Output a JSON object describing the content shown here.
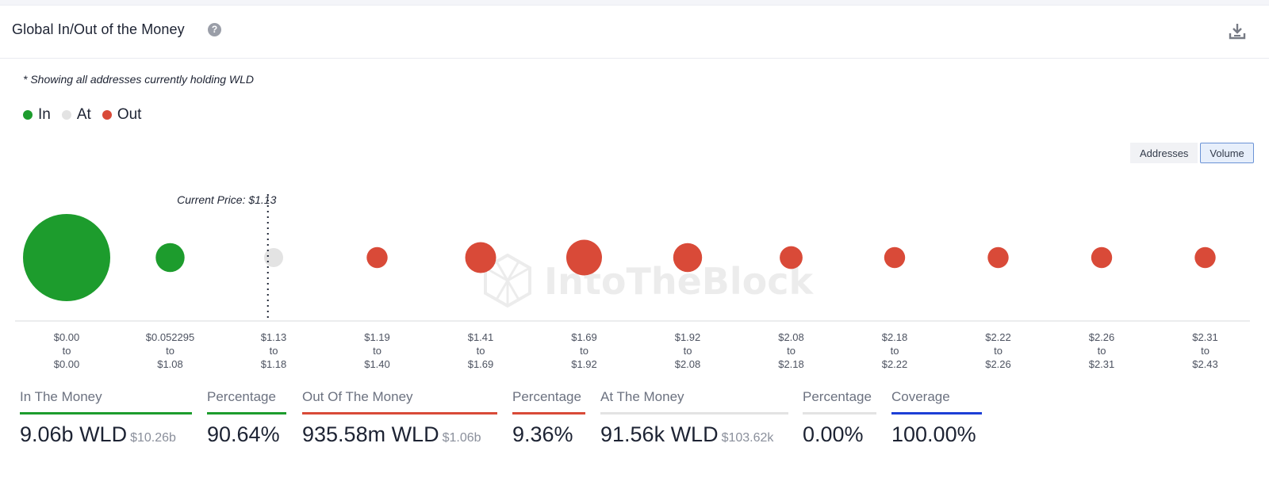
{
  "header": {
    "title": "Global In/Out of the Money",
    "help_glyph": "?",
    "help_icon": "question-circle-icon",
    "download_icon": "download-icon"
  },
  "note": "* Showing all addresses currently holding WLD",
  "legend": [
    {
      "label": "In",
      "color": "#1d9c2d"
    },
    {
      "label": "At",
      "color": "#e3e3e3"
    },
    {
      "label": "Out",
      "color": "#d94a38"
    }
  ],
  "toggle": {
    "addresses_label": "Addresses",
    "volume_label": "Volume",
    "selected": "Volume"
  },
  "watermark": "IntoTheBlock",
  "chart_data": {
    "type": "scatter",
    "subtype": "bubble",
    "annotation": "Current Price: $1.13",
    "categories": [
      {
        "lower": "$0.00",
        "upper": "$0.00"
      },
      {
        "lower": "$0.052295",
        "upper": "$1.08"
      },
      {
        "lower": "$1.13",
        "upper": "$1.18"
      },
      {
        "lower": "$1.19",
        "upper": "$1.40"
      },
      {
        "lower": "$1.41",
        "upper": "$1.69"
      },
      {
        "lower": "$1.69",
        "upper": "$1.92"
      },
      {
        "lower": "$1.92",
        "upper": "$2.08"
      },
      {
        "lower": "$2.08",
        "upper": "$2.18"
      },
      {
        "lower": "$2.18",
        "upper": "$2.22"
      },
      {
        "lower": "$2.22",
        "upper": "$2.26"
      },
      {
        "lower": "$2.26",
        "upper": "$2.31"
      },
      {
        "lower": "$2.31",
        "upper": "$2.43"
      }
    ],
    "range_connector": "to",
    "status": [
      "in",
      "in",
      "at",
      "out",
      "out",
      "out",
      "out",
      "out",
      "out",
      "out",
      "out",
      "out"
    ],
    "relative_volume": [
      1.0,
      0.109,
      0.048,
      0.058,
      0.126,
      0.168,
      0.109,
      0.069,
      0.058,
      0.058,
      0.058,
      0.058
    ],
    "status_colors": {
      "in": "#1d9c2d",
      "at": "#e3e3e3",
      "out": "#d94a38"
    },
    "current_price_marker_after_index": 1,
    "grid": false
  },
  "stats": [
    {
      "label": "In The Money",
      "main": "9.06b WLD",
      "sub": "$10.26b",
      "color": "#1d9c2d"
    },
    {
      "label": "Percentage",
      "main": "90.64%",
      "sub": "",
      "color": "#1d9c2d"
    },
    {
      "label": "Out Of The Money",
      "main": "935.58m WLD",
      "sub": "$1.06b",
      "color": "#d94a38"
    },
    {
      "label": "Percentage",
      "main": "9.36%",
      "sub": "",
      "color": "#d94a38"
    },
    {
      "label": "At The Money",
      "main": "91.56k WLD",
      "sub": "$103.62k",
      "color": "#e3e3e3"
    },
    {
      "label": "Percentage",
      "main": "0.00%",
      "sub": "",
      "color": "#e3e3e3"
    },
    {
      "label": "Coverage",
      "main": "100.00%",
      "sub": "",
      "color": "#1d3fd6"
    }
  ]
}
